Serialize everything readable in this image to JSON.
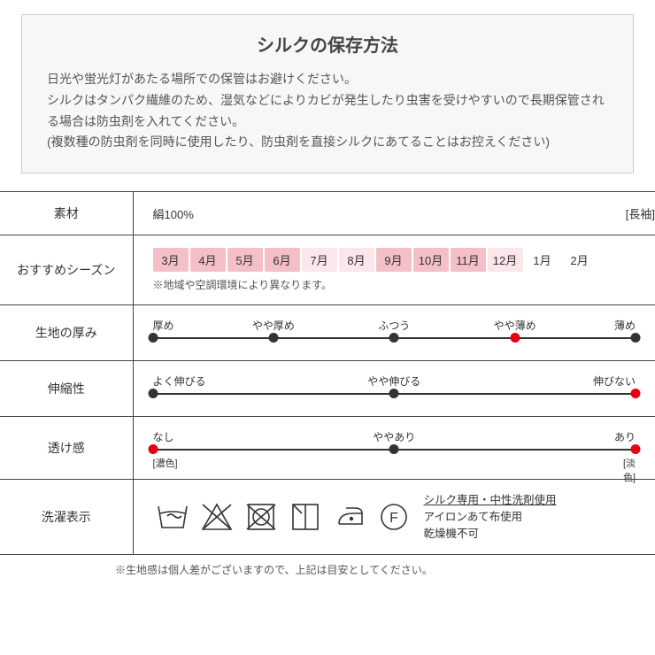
{
  "storage": {
    "title": "シルクの保存方法",
    "body": "日光や蛍光灯があたる場所での保管はお避けください。\nシルクはタンパク繊維のため、湿気などによりカビが発生したり虫害を受けやすいので長期保管される場合は防虫剤を入れてください。\n(複数種の防虫剤を同時に使用したり、防虫剤を直接シルクにあてることはお控えください)"
  },
  "spec": {
    "rows": {
      "material": {
        "label": "素材",
        "value": "絹100%",
        "tag": "[長袖]"
      },
      "season": {
        "label": "おすすめシーズン",
        "months": [
          {
            "t": "3月",
            "c": "m1"
          },
          {
            "t": "4月",
            "c": "m1"
          },
          {
            "t": "5月",
            "c": "m1"
          },
          {
            "t": "6月",
            "c": "m1"
          },
          {
            "t": "7月",
            "c": "m2"
          },
          {
            "t": "8月",
            "c": "m2"
          },
          {
            "t": "9月",
            "c": "m3"
          },
          {
            "t": "10月",
            "c": "m3"
          },
          {
            "t": "11月",
            "c": "m3"
          },
          {
            "t": "12月",
            "c": "m4"
          },
          {
            "t": "1月",
            "c": "m0"
          },
          {
            "t": "2月",
            "c": "m0"
          }
        ],
        "note": "※地域や空調環境により異なります。"
      },
      "thickness": {
        "label": "生地の厚み",
        "ticks": [
          {
            "pos": 0,
            "label": "厚め",
            "red": false
          },
          {
            "pos": 25,
            "label": "やや厚め",
            "red": false
          },
          {
            "pos": 50,
            "label": "ふつう",
            "red": false
          },
          {
            "pos": 75,
            "label": "やや薄め",
            "red": true
          },
          {
            "pos": 100,
            "label": "薄め",
            "red": false
          }
        ]
      },
      "stretch": {
        "label": "伸縮性",
        "ticks": [
          {
            "pos": 0,
            "label": "よく伸びる",
            "red": false
          },
          {
            "pos": 50,
            "label": "やや伸びる",
            "red": false
          },
          {
            "pos": 100,
            "label": "伸びない",
            "red": true
          }
        ]
      },
      "sheer": {
        "label": "透け感",
        "ticks": [
          {
            "pos": 0,
            "label": "なし",
            "red": true,
            "sub": "[濃色]"
          },
          {
            "pos": 50,
            "label": "ややあり",
            "red": false
          },
          {
            "pos": 100,
            "label": "あり",
            "red": true,
            "sub": "[淡色]"
          }
        ]
      },
      "wash": {
        "label": "洗濯表示",
        "text_line1": "シルク専用・中性洗剤使用",
        "text_line2": "アイロンあて布使用",
        "text_line3": "乾燥機不可"
      }
    }
  },
  "footnote": "※生地感は個人差がございますので、上記は目安としてください。",
  "colors": {
    "red": "#e60012",
    "black": "#333333",
    "pink_dark": "#f4bfc7",
    "pink_light": "#fbe6ea",
    "box_bg": "#f7f7f7",
    "border": "#cccccc"
  },
  "typography": {
    "title_fontsize": 20,
    "body_fontsize": 14,
    "table_label_fontsize": 14,
    "small_fontsize": 12
  }
}
